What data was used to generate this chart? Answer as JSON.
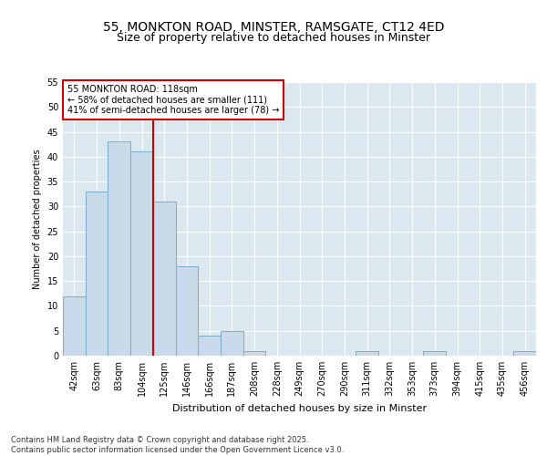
{
  "title1": "55, MONKTON ROAD, MINSTER, RAMSGATE, CT12 4ED",
  "title2": "Size of property relative to detached houses in Minster",
  "xlabel": "Distribution of detached houses by size in Minster",
  "ylabel": "Number of detached properties",
  "bar_values": [
    12,
    33,
    43,
    41,
    31,
    18,
    4,
    5,
    1,
    0,
    0,
    0,
    0,
    1,
    0,
    0,
    1,
    0,
    0,
    0,
    1
  ],
  "bar_labels": [
    "42sqm",
    "63sqm",
    "83sqm",
    "104sqm",
    "125sqm",
    "146sqm",
    "166sqm",
    "187sqm",
    "208sqm",
    "228sqm",
    "249sqm",
    "270sqm",
    "290sqm",
    "311sqm",
    "332sqm",
    "353sqm",
    "373sqm",
    "394sqm",
    "415sqm",
    "435sqm",
    "456sqm"
  ],
  "bar_color": "#c8daea",
  "bar_edge_color": "#7aacc8",
  "fig_background": "#ffffff",
  "plot_background": "#dce8f0",
  "grid_color": "#ffffff",
  "red_line_color": "#cc0000",
  "annotation_text": "55 MONKTON ROAD: 118sqm\n← 58% of detached houses are smaller (111)\n41% of semi-detached houses are larger (78) →",
  "annotation_box_facecolor": "#ffffff",
  "annotation_box_edgecolor": "#cc0000",
  "ylim": [
    0,
    55
  ],
  "yticks": [
    0,
    5,
    10,
    15,
    20,
    25,
    30,
    35,
    40,
    45,
    50,
    55
  ],
  "footer": "Contains HM Land Registry data © Crown copyright and database right 2025.\nContains public sector information licensed under the Open Government Licence v3.0.",
  "title1_fontsize": 10,
  "title2_fontsize": 9,
  "xlabel_fontsize": 8,
  "ylabel_fontsize": 7,
  "tick_fontsize": 7,
  "annotation_fontsize": 7,
  "footer_fontsize": 6
}
